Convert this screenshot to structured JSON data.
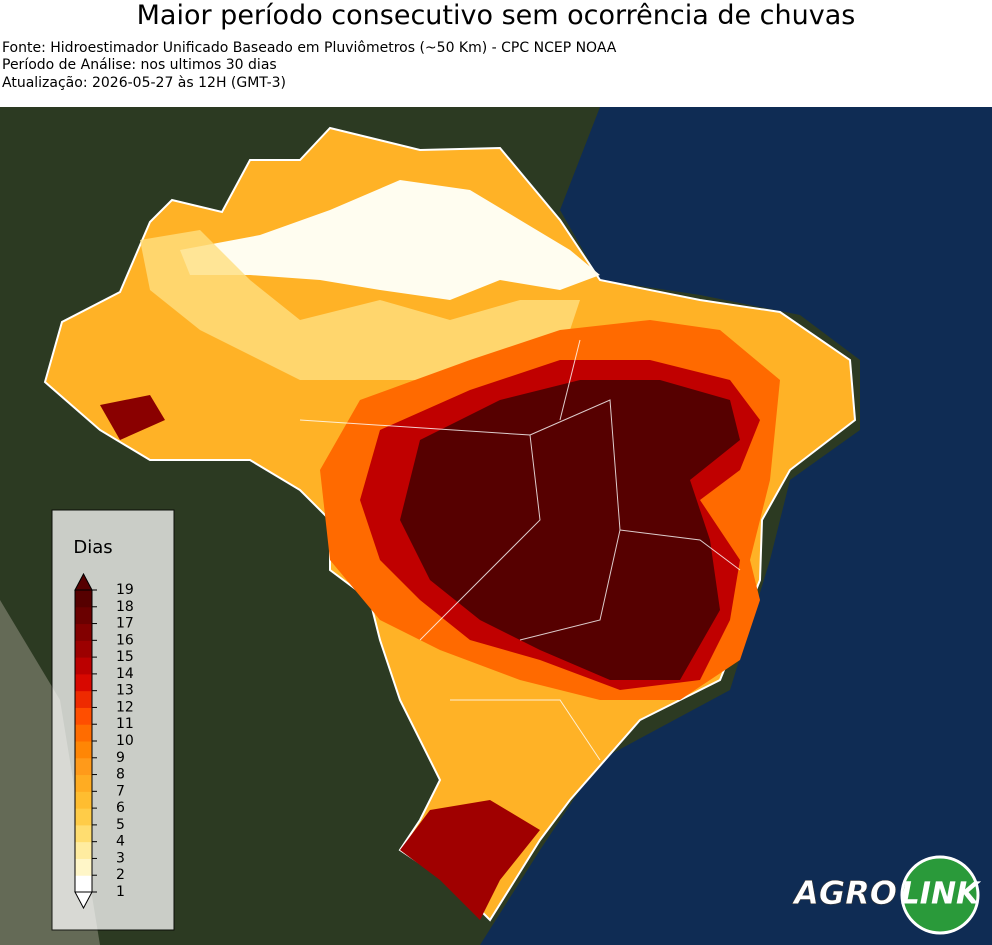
{
  "header": {
    "title": "Maior período consecutivo sem ocorrência de chuvas",
    "lines": [
      "Fonte: Hidroestimador Unificado Baseado em Pluviômetros (~50 Km) - CPC NCEP NOAA",
      "Período de Análise: nos ultimos 30 dias",
      "Atualização: 2026-05-27 às 12H (GMT-3)"
    ]
  },
  "legend": {
    "title": "Dias",
    "ticks": [
      1,
      2,
      3,
      4,
      5,
      6,
      7,
      8,
      9,
      10,
      11,
      12,
      13,
      14,
      15,
      16,
      17,
      18,
      19
    ],
    "colors": [
      "#ffffff",
      "#fff6c8",
      "#ffeca0",
      "#ffdd70",
      "#ffcc48",
      "#ffbd30",
      "#ffac22",
      "#ff9a1a",
      "#ff8605",
      "#ff6c00",
      "#ff4e00",
      "#ee2a00",
      "#d80800",
      "#bb0000",
      "#9c0000",
      "#820000",
      "#6a0000",
      "#560000"
    ]
  },
  "logo": {
    "left": "AGRO",
    "right": "LINK"
  }
}
